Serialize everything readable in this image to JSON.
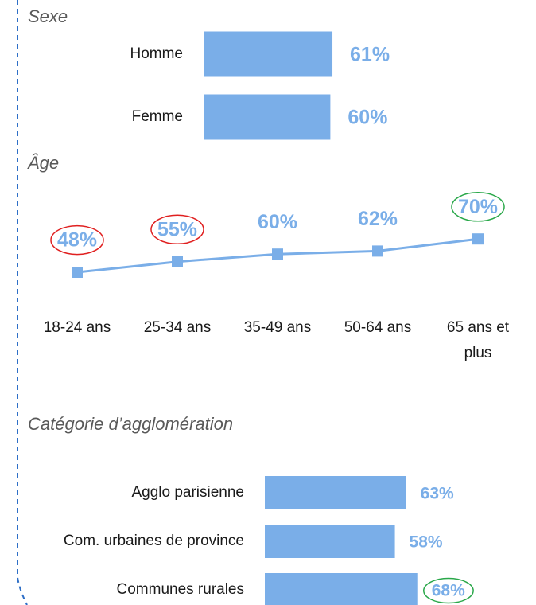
{
  "chart_data": [
    {
      "type": "bar",
      "horizontal": true,
      "title": "Sexe",
      "categories": [
        "Homme",
        "Femme"
      ],
      "values": [
        61,
        60
      ],
      "value_labels": [
        "61%",
        "60%"
      ],
      "color": "#7aaee8"
    },
    {
      "type": "line",
      "title": "Âge",
      "categories": [
        "18-24 ans",
        "25-34 ans",
        "35-49 ans",
        "50-64 ans",
        "65 ans et plus"
      ],
      "values": [
        48,
        55,
        60,
        62,
        70
      ],
      "value_labels": [
        "48%",
        "55%",
        "60%",
        "62%",
        "70%"
      ],
      "color": "#7aaee8",
      "circle_colors": [
        "#e02020",
        "#e02020",
        null,
        null,
        "#2aa84a"
      ]
    },
    {
      "type": "bar",
      "horizontal": true,
      "title": "Catégorie d’agglomération",
      "categories": [
        "Agglo parisienne",
        "Com. urbaines de province",
        "Communes rurales"
      ],
      "values": [
        63,
        58,
        68
      ],
      "value_labels": [
        "63%",
        "58%",
        "68%"
      ],
      "color": "#7aaee8",
      "circle_colors": [
        null,
        null,
        "#2aa84a"
      ]
    }
  ]
}
